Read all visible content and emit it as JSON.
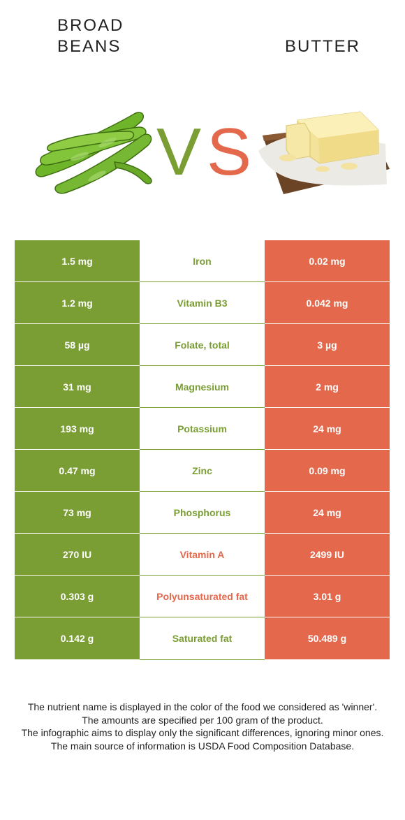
{
  "left_food": {
    "name": "BROAD\nBEANS",
    "color": "#7a9d34"
  },
  "right_food": {
    "name": "BUTTER",
    "color": "#e4694c"
  },
  "vs": {
    "v": "V",
    "s": "S"
  },
  "rows": [
    {
      "left": "1.5 mg",
      "nutrient": "Iron",
      "right": "0.02 mg",
      "winner": "left"
    },
    {
      "left": "1.2 mg",
      "nutrient": "Vitamin B3",
      "right": "0.042 mg",
      "winner": "left"
    },
    {
      "left": "58 µg",
      "nutrient": "Folate, total",
      "right": "3 µg",
      "winner": "left"
    },
    {
      "left": "31 mg",
      "nutrient": "Magnesium",
      "right": "2 mg",
      "winner": "left"
    },
    {
      "left": "193 mg",
      "nutrient": "Potassium",
      "right": "24 mg",
      "winner": "left"
    },
    {
      "left": "0.47 mg",
      "nutrient": "Zinc",
      "right": "0.09 mg",
      "winner": "left"
    },
    {
      "left": "73 mg",
      "nutrient": "Phosphorus",
      "right": "24 mg",
      "winner": "left"
    },
    {
      "left": "270 IU",
      "nutrient": "Vitamin A",
      "right": "2499 IU",
      "winner": "right"
    },
    {
      "left": "0.303 g",
      "nutrient": "Polyunsaturated fat",
      "right": "3.01 g",
      "winner": "right"
    },
    {
      "left": "0.142 g",
      "nutrient": "Saturated fat",
      "right": "50.489 g",
      "winner": "left"
    }
  ],
  "notes": [
    "The nutrient name is displayed in the color of the food we considered as 'winner'.",
    "The amounts are specified per 100 gram of the product.",
    "The infographic aims to display only the significant differences, ignoring minor ones.",
    "The main source of information is USDA Food Composition Database."
  ]
}
